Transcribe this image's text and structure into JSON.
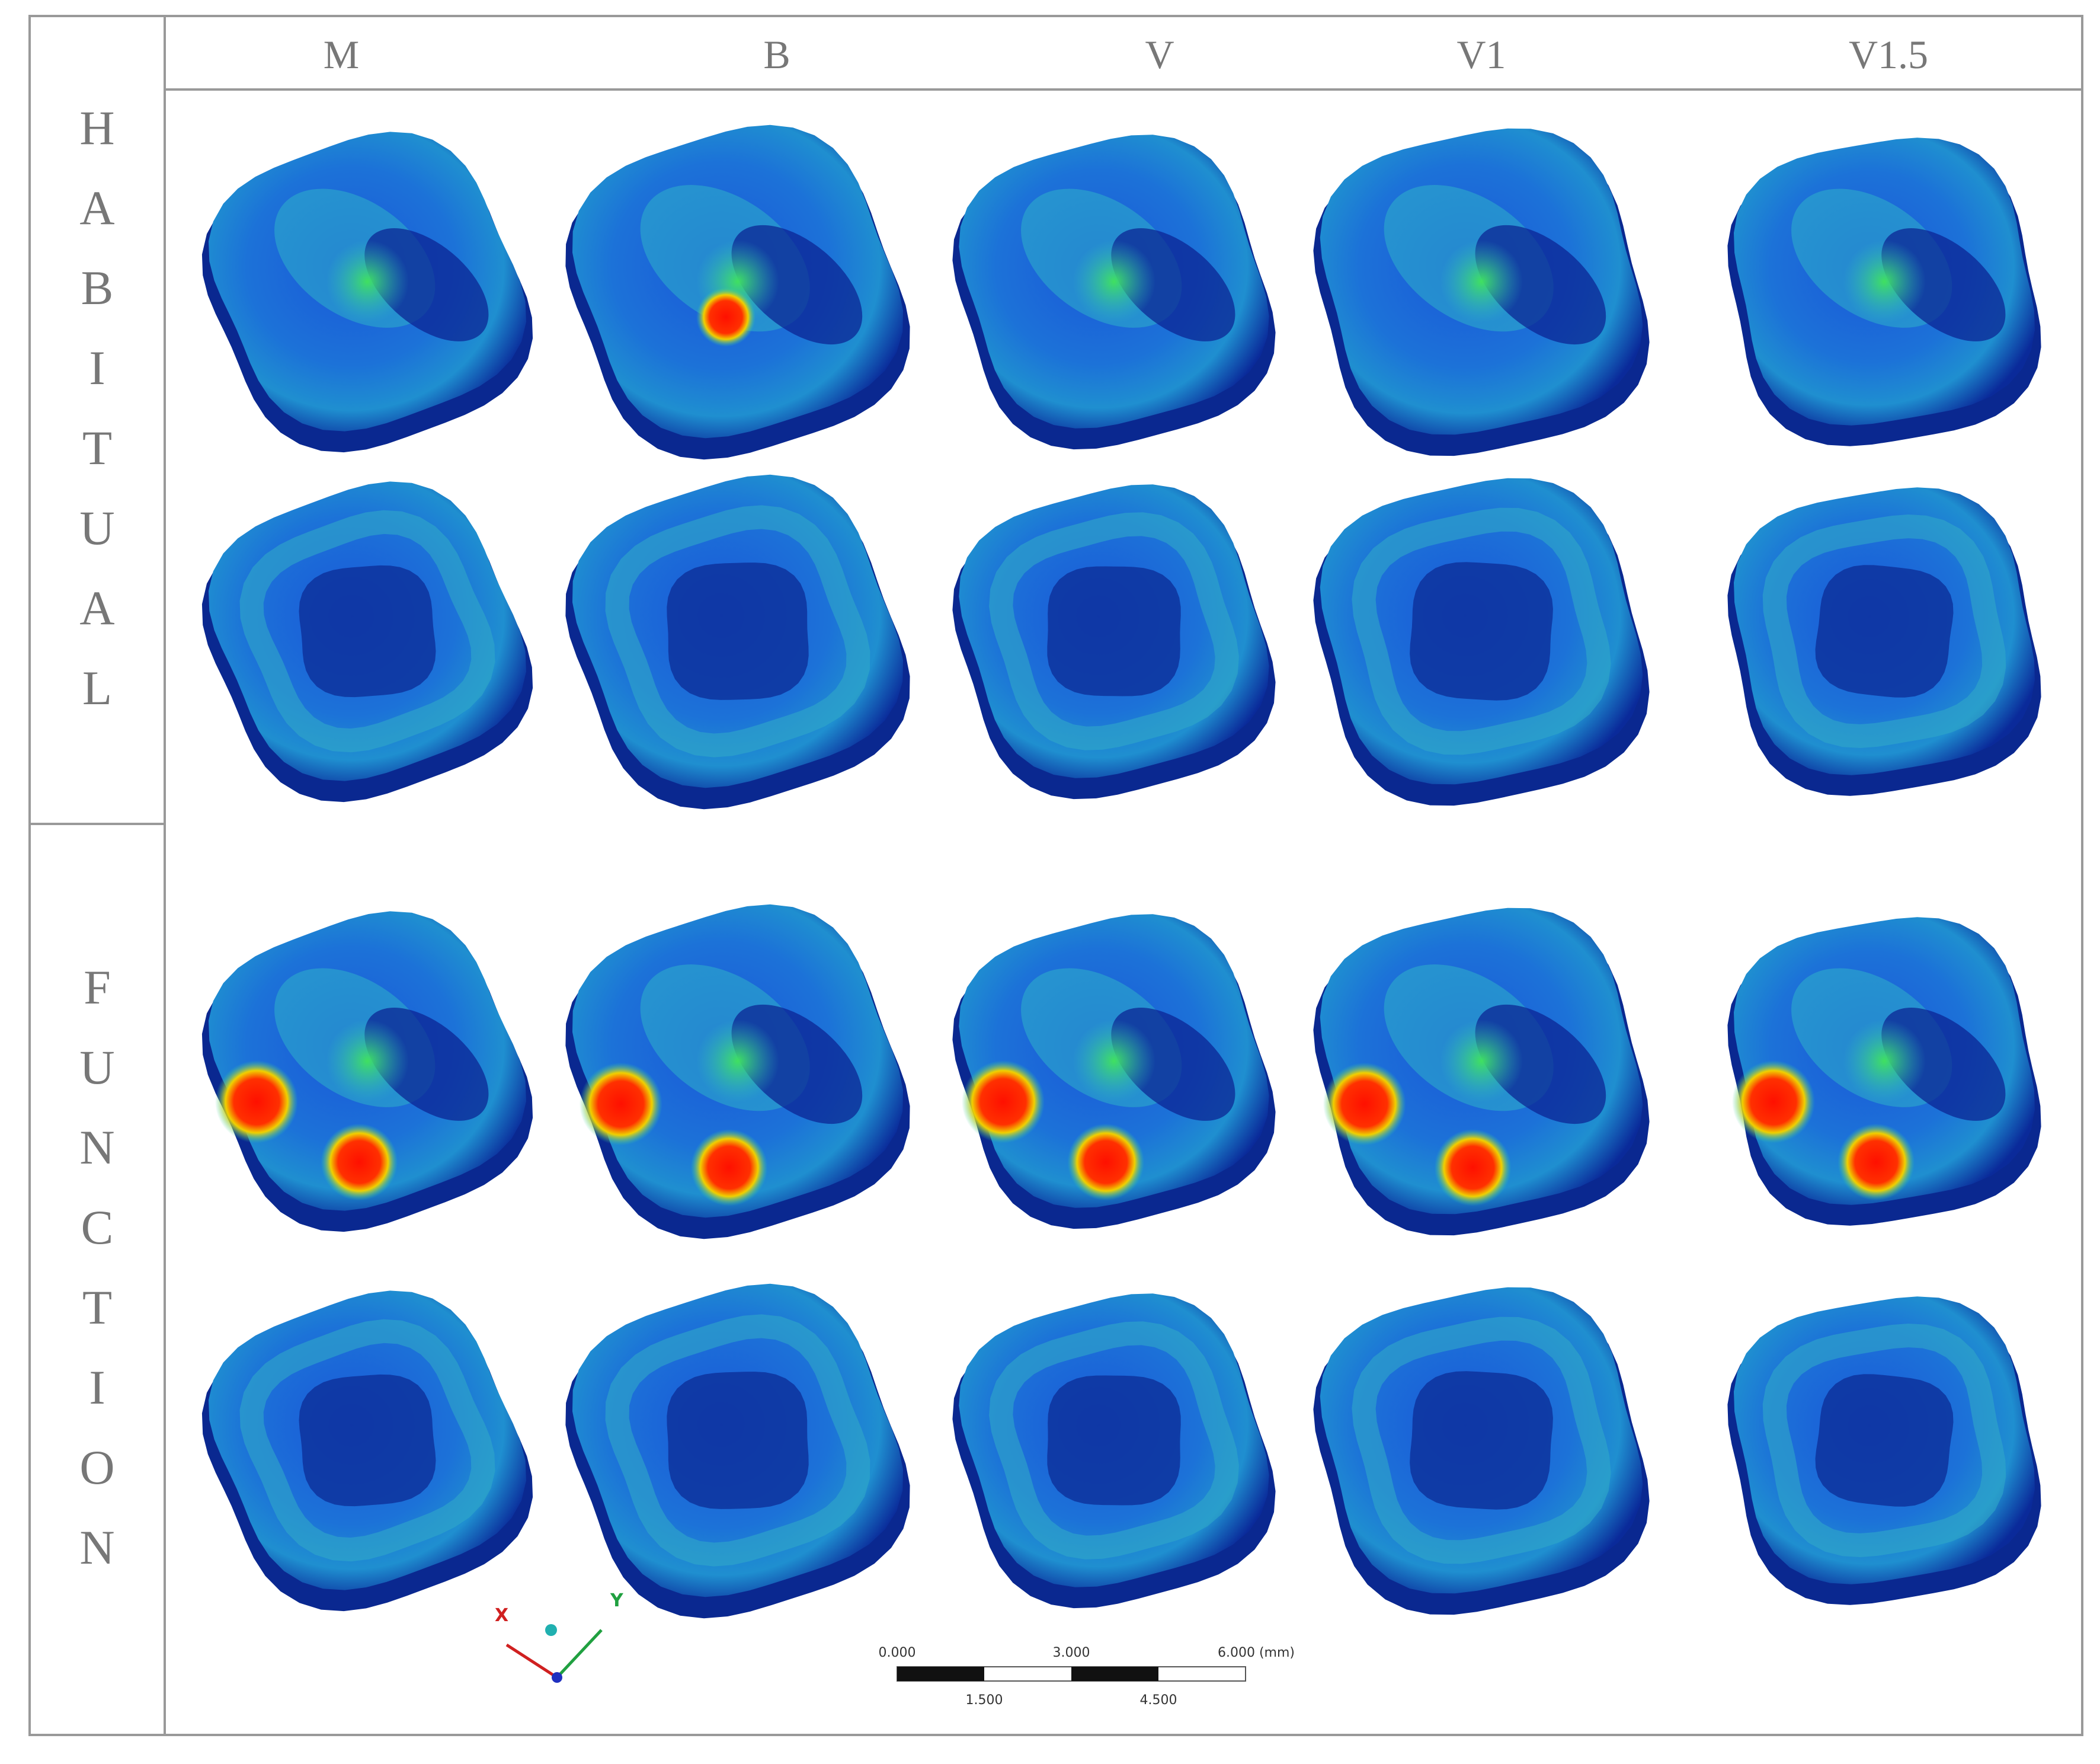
{
  "columns": [
    "M",
    "B",
    "V",
    "V1",
    "V1.5"
  ],
  "rows": [
    "HABITUAL",
    "FUNCTION"
  ],
  "axes": {
    "x": "X",
    "y": "Y"
  },
  "scale_bar": {
    "top": [
      "0.000",
      "3.000",
      "6.000 (mm)"
    ],
    "bottom": [
      "1.500",
      "4.500"
    ]
  }
}
